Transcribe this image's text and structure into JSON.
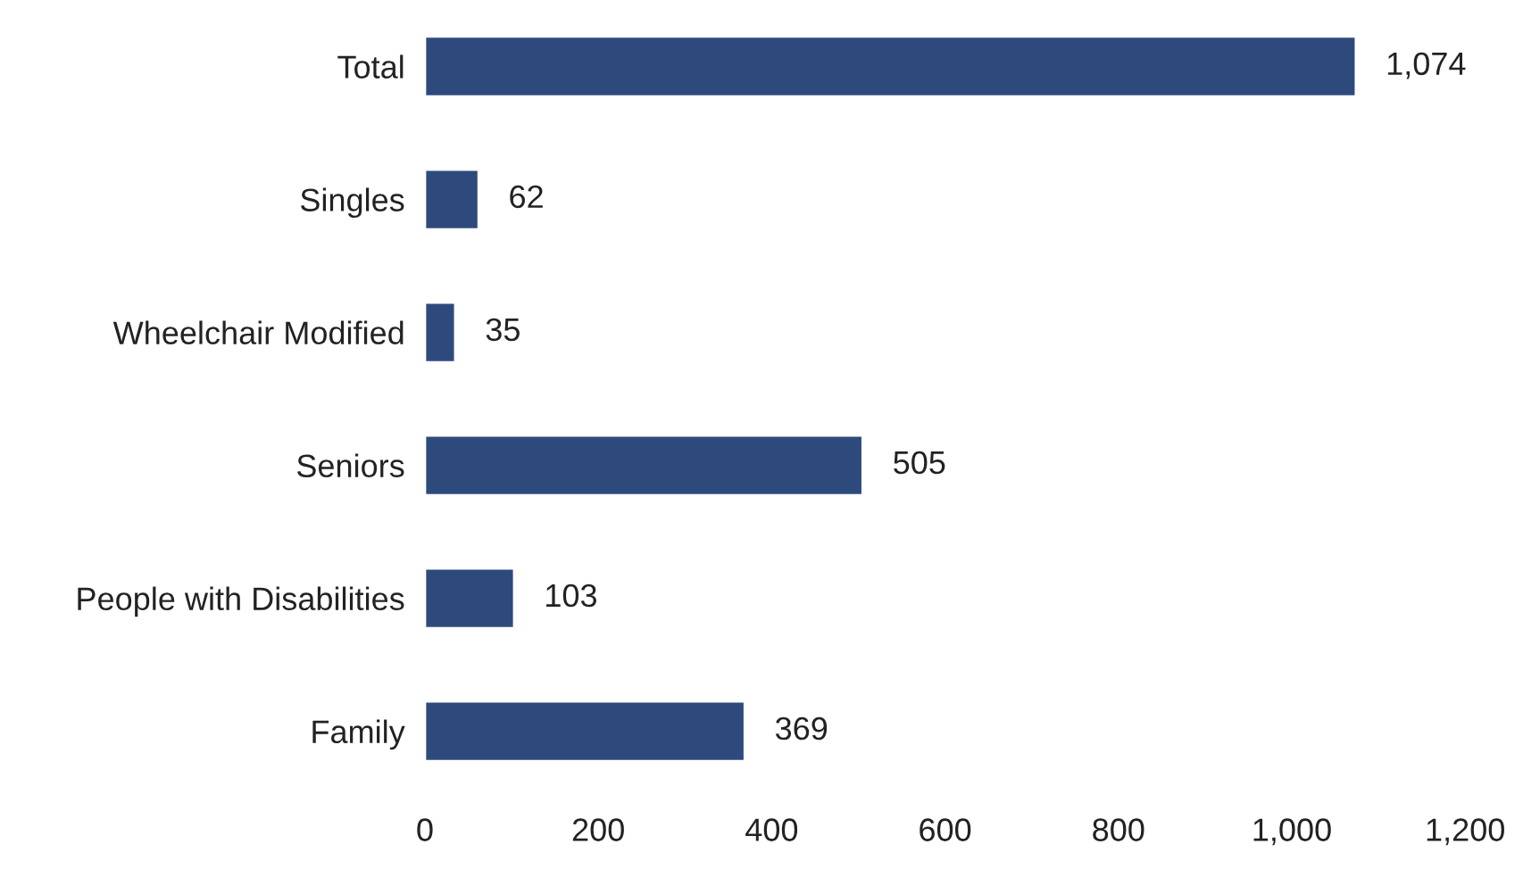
{
  "chart_data": {
    "type": "bar",
    "orientation": "horizontal",
    "categories": [
      "Total",
      "Singles",
      "Wheelchair Modified",
      "Seniors",
      "People with Disabilities",
      "Family"
    ],
    "values": [
      1074,
      62,
      35,
      505,
      103,
      369
    ],
    "value_labels": [
      "1,074",
      "62",
      "35",
      "505",
      "103",
      "369"
    ],
    "color": "#2e4a7d",
    "xlim": [
      0,
      1200
    ],
    "xticks": [
      0,
      200,
      400,
      600,
      800,
      {
        "value": 1000,
        "label": "1,000"
      },
      {
        "value": 1200,
        "label": "1,200"
      }
    ],
    "grid": false,
    "legend": false
  }
}
